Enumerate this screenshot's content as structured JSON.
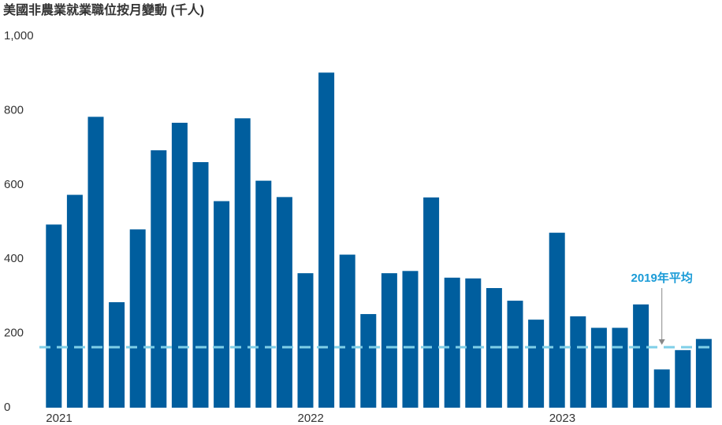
{
  "chart_data": {
    "type": "bar",
    "title": "美國非農業就業職位按月變動 (千人)",
    "categories": [
      "2021",
      null,
      null,
      null,
      null,
      null,
      null,
      null,
      null,
      null,
      null,
      null,
      "2022",
      null,
      null,
      null,
      null,
      null,
      null,
      null,
      null,
      null,
      null,
      null,
      "2023",
      null,
      null,
      null,
      null,
      null,
      null,
      null
    ],
    "values": [
      493,
      573,
      783,
      284,
      480,
      693,
      767,
      661,
      556,
      779,
      611,
      567,
      362,
      902,
      412,
      252,
      362,
      368,
      566,
      350,
      348,
      322,
      288,
      237,
      471,
      246,
      215,
      215,
      278,
      103,
      155,
      185
    ],
    "color": "#005e9e",
    "ylim": [
      0,
      1000
    ],
    "yticks": [
      0,
      200,
      400,
      600,
      800,
      {
        "value": 1000,
        "label": "1,000"
      }
    ],
    "grid": false,
    "reference_line": {
      "value": 163,
      "label": "2019年平均",
      "color": "#7fcfe8",
      "label_color": "#1a9bd7"
    }
  }
}
